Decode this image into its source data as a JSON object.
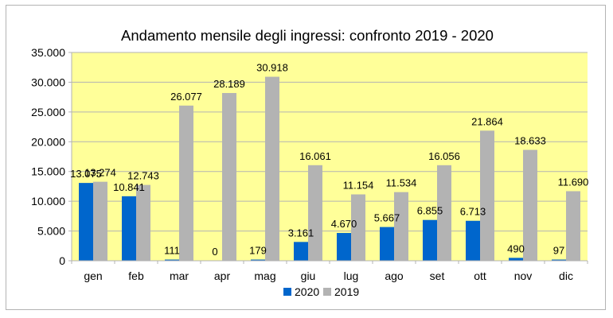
{
  "chart_data": {
    "type": "bar",
    "title": "Andamento mensile degli ingressi: confronto 2019 - 2020",
    "xlabel": "",
    "ylabel": "",
    "categories": [
      "gen",
      "feb",
      "mar",
      "apr",
      "mag",
      "giu",
      "lug",
      "ago",
      "set",
      "ott",
      "nov",
      "dic"
    ],
    "series": [
      {
        "name": "2020",
        "color": "#0066cc",
        "values": [
          13075,
          10841,
          111,
          0,
          179,
          3161,
          4670,
          5667,
          6855,
          6713,
          490,
          97
        ],
        "labels": [
          "13.075",
          "10.841",
          "111",
          "0",
          "179",
          "3.161",
          "4.670",
          "5.667",
          "6.855",
          "6.713",
          "490",
          "97"
        ]
      },
      {
        "name": "2019",
        "color": "#b3b3b3",
        "values": [
          13274,
          12743,
          26077,
          28189,
          30918,
          16061,
          11154,
          11534,
          16056,
          21864,
          18633,
          11690
        ],
        "labels": [
          "13.274",
          "12.743",
          "26.077",
          "28.189",
          "30.918",
          "16.061",
          "11.154",
          "11.534",
          "16.056",
          "21.864",
          "18.633",
          "11.690"
        ]
      }
    ],
    "ylim": [
      0,
      35000
    ],
    "yticks": [
      0,
      5000,
      10000,
      15000,
      20000,
      25000,
      30000,
      35000
    ],
    "ytick_labels": [
      "0",
      "5.000",
      "10.000",
      "15.000",
      "20.000",
      "25.000",
      "30.000",
      "35.000"
    ],
    "grid": true,
    "plot_background": "#ffff99",
    "legend_position": "bottom"
  }
}
